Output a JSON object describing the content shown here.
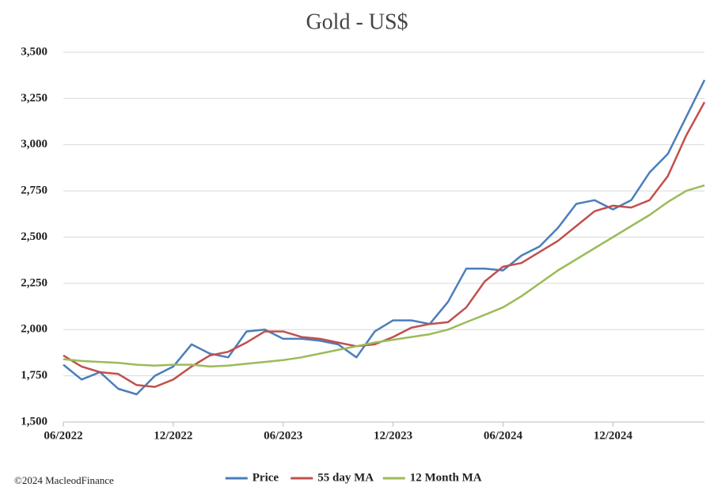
{
  "chart_data": {
    "type": "line",
    "title": "Gold - US$",
    "footer": "©2024 MacleodFinance",
    "x": [
      "2022-06",
      "2022-07",
      "2022-08",
      "2022-09",
      "2022-10",
      "2022-11",
      "2022-12",
      "2023-01",
      "2023-02",
      "2023-03",
      "2023-04",
      "2023-05",
      "2023-06",
      "2023-07",
      "2023-08",
      "2023-09",
      "2023-10",
      "2023-11",
      "2023-12",
      "2024-01",
      "2024-02",
      "2024-03",
      "2024-04",
      "2024-05",
      "2024-06",
      "2024-07",
      "2024-08",
      "2024-09",
      "2024-10",
      "2024-11",
      "2024-12",
      "2025-01",
      "2025-02",
      "2025-03",
      "2025-04",
      "2025-05"
    ],
    "series": [
      {
        "name": "Price",
        "color": "#4a7ebb",
        "values": [
          1810,
          1730,
          1770,
          1680,
          1650,
          1750,
          1800,
          1920,
          1870,
          1850,
          1990,
          2000,
          1950,
          1950,
          1940,
          1920,
          1850,
          1990,
          2050,
          2050,
          2030,
          2150,
          2330,
          2330,
          2320,
          2400,
          2450,
          2550,
          2680,
          2700,
          2650,
          2700,
          2850,
          2950,
          3150,
          3350
        ]
      },
      {
        "name": "55 day MA",
        "color": "#c0504d",
        "values": [
          1860,
          1800,
          1770,
          1760,
          1700,
          1690,
          1730,
          1800,
          1860,
          1880,
          1930,
          1990,
          1990,
          1960,
          1950,
          1930,
          1910,
          1920,
          1960,
          2010,
          2030,
          2040,
          2120,
          2260,
          2340,
          2360,
          2420,
          2480,
          2560,
          2640,
          2670,
          2660,
          2700,
          2830,
          3050,
          3230
        ]
      },
      {
        "name": "12 Month MA",
        "color": "#9bbb59",
        "values": [
          1840,
          1830,
          1825,
          1820,
          1810,
          1805,
          1810,
          1810,
          1800,
          1805,
          1815,
          1825,
          1835,
          1850,
          1870,
          1890,
          1910,
          1930,
          1945,
          1960,
          1975,
          2000,
          2040,
          2080,
          2120,
          2180,
          2250,
          2320,
          2380,
          2440,
          2500,
          2560,
          2620,
          2690,
          2750,
          2780
        ]
      }
    ],
    "xlim": [
      "2022-06",
      "2025-05"
    ],
    "xticks": [
      {
        "value": "2022-06",
        "label": "06/2022"
      },
      {
        "value": "2022-12",
        "label": "12/2022"
      },
      {
        "value": "2023-06",
        "label": "06/2023"
      },
      {
        "value": "2023-12",
        "label": "12/2023"
      },
      {
        "value": "2024-06",
        "label": "06/2024"
      },
      {
        "value": "2024-12",
        "label": "12/2024"
      }
    ],
    "ylim": [
      1500,
      3500
    ],
    "yticks": [
      {
        "value": 1500,
        "label": "1,500"
      },
      {
        "value": 1750,
        "label": "1,750"
      },
      {
        "value": 2000,
        "label": "2,000"
      },
      {
        "value": 2250,
        "label": "2,250"
      },
      {
        "value": 2500,
        "label": "2,500"
      },
      {
        "value": 2750,
        "label": "2,750"
      },
      {
        "value": 3000,
        "label": "3,000"
      },
      {
        "value": 3250,
        "label": "3,250"
      },
      {
        "value": 3500,
        "label": "3,500"
      }
    ],
    "grid": true,
    "legend": "bottom"
  }
}
